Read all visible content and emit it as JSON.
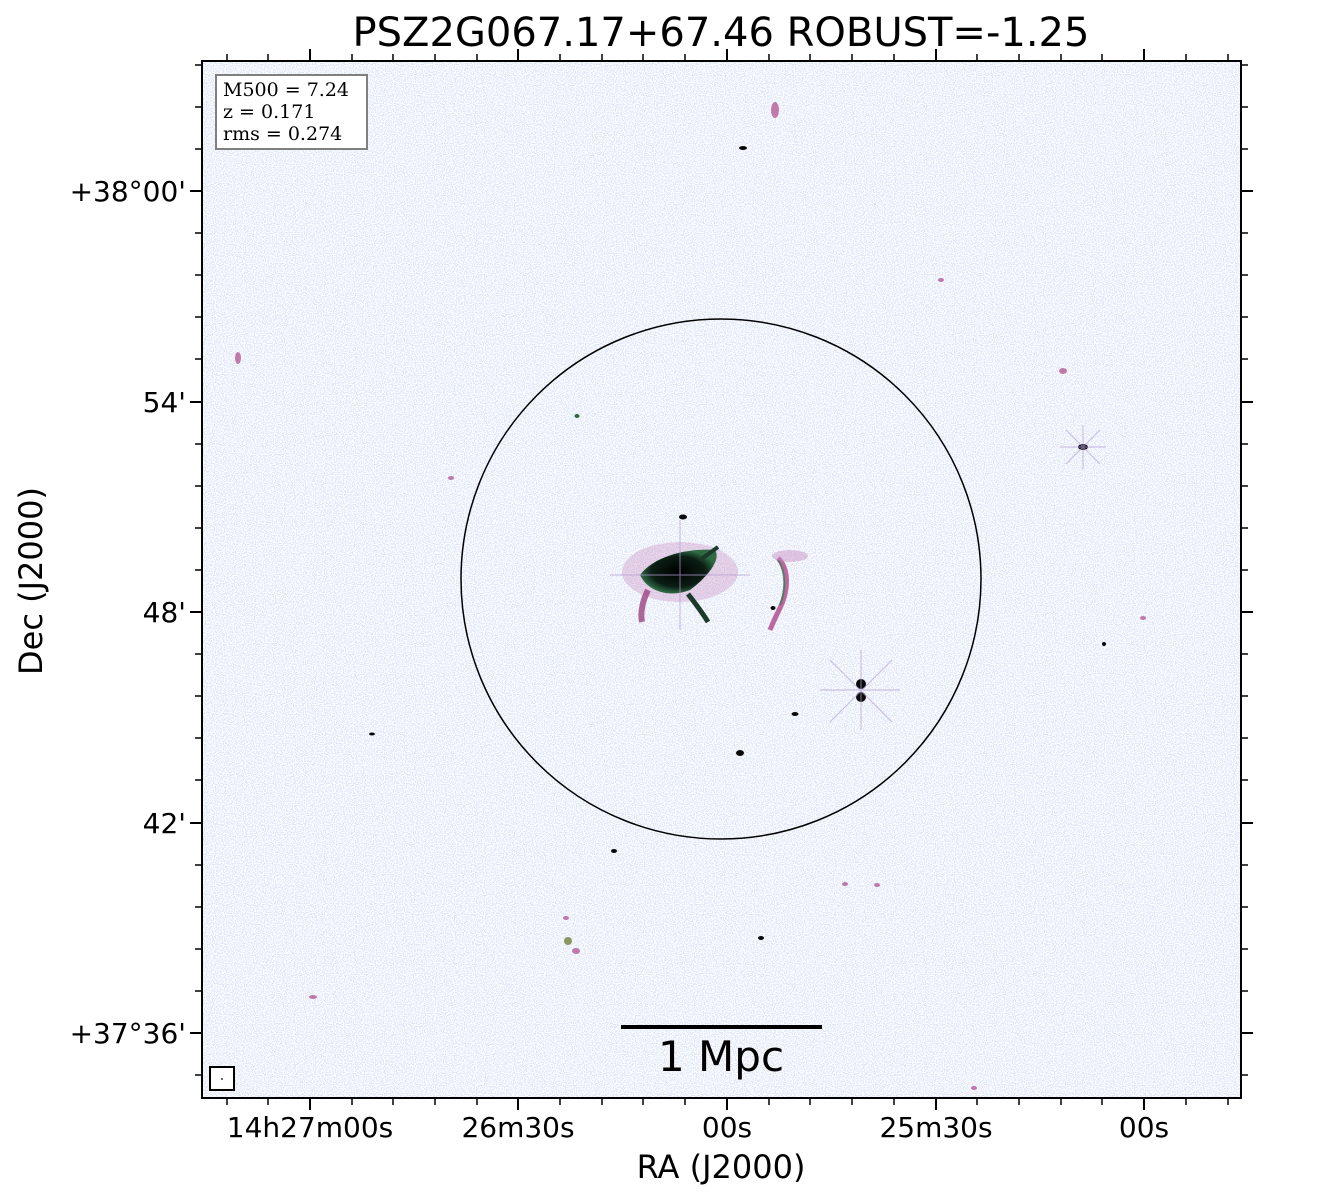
{
  "figure": {
    "title": "PSZ2G067.17+67.46 ROBUST=-1.25",
    "xlabel": "RA (J2000)",
    "ylabel": "Dec (J2000)",
    "x_ticks": [
      "14h27m00s",
      "26m30s",
      "00s",
      "25m30s",
      "00s"
    ],
    "y_ticks": [
      "+38°00'",
      "54'",
      "48'",
      "42'",
      "+37°36'"
    ],
    "info_box": [
      "M500 = 7.24",
      "z = 0.171",
      "rms = 0.274"
    ],
    "scale_bar_label": "1 Mpc"
  },
  "colors": {
    "noise": "#8fa6dd",
    "noise_alt": "#b49fd6",
    "emission_magenta": "#b0508f",
    "emission_green": "#2f6a45",
    "emission_core": "#0a0a0a",
    "axis": "#000000",
    "info_box_border": "#808080"
  }
}
